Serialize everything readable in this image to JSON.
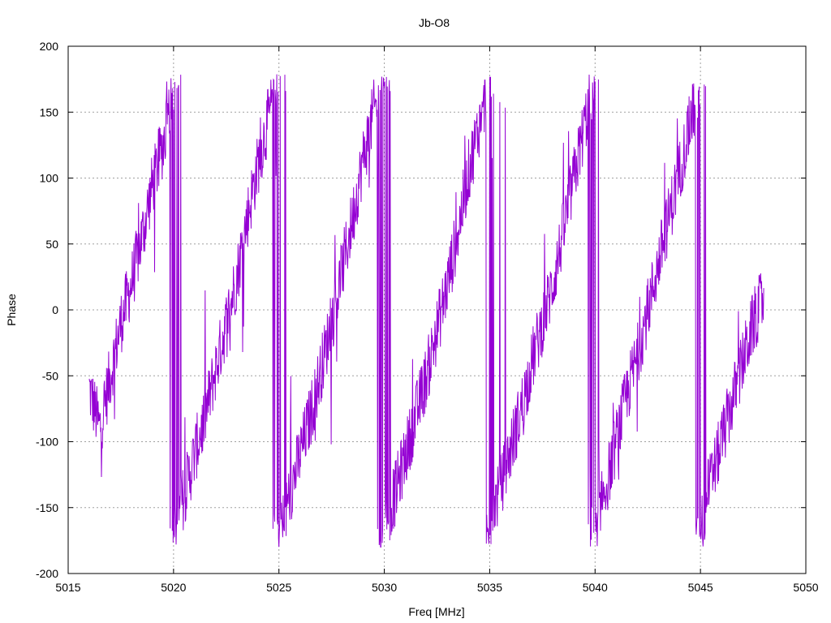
{
  "chart_data": {
    "type": "line",
    "title": "Jb-O8",
    "xlabel": "Freq [MHz]",
    "ylabel": "Phase",
    "xlim": [
      5015,
      5050
    ],
    "ylim": [
      -200,
      200
    ],
    "xticks": [
      5015,
      5020,
      5025,
      5030,
      5035,
      5040,
      5045,
      5050
    ],
    "yticks": [
      -200,
      -150,
      -100,
      -50,
      0,
      50,
      100,
      150,
      200
    ],
    "grid": true,
    "legend": "none",
    "series_color": "#9400d3",
    "series": [
      {
        "x_start": 5016.0,
        "x_end": 5048.0,
        "wrap_points_mhz": [
          5020.0,
          5025.0,
          5030.0,
          5034.9,
          5040.0,
          5044.9
        ],
        "x": [
          5016.0,
          5016.5,
          5017.0,
          5017.5,
          5018.0,
          5018.5,
          5019.0,
          5019.5,
          5019.9,
          5020.0,
          5020.5,
          5021.0,
          5021.5,
          5022.0,
          5022.5,
          5023.0,
          5023.5,
          5024.0,
          5024.5,
          5024.9,
          5025.0,
          5025.5,
          5026.0,
          5026.5,
          5027.0,
          5027.5,
          5028.0,
          5028.5,
          5029.0,
          5029.5,
          5029.9,
          5030.0,
          5030.5,
          5031.0,
          5031.5,
          5032.0,
          5032.5,
          5033.0,
          5033.5,
          5034.0,
          5034.5,
          5034.9,
          5035.0,
          5035.5,
          5036.0,
          5036.5,
          5037.0,
          5037.5,
          5038.0,
          5038.5,
          5039.0,
          5039.5,
          5039.9,
          5040.0,
          5040.5,
          5041.0,
          5041.5,
          5042.0,
          5042.5,
          5043.0,
          5043.5,
          5044.0,
          5044.5,
          5044.9,
          5045.0,
          5045.5,
          5046.0,
          5046.5,
          5047.0,
          5047.5,
          5048.0
        ],
        "y": [
          -60,
          -90,
          -50,
          -10,
          20,
          55,
          95,
          125,
          165,
          -170,
          -140,
          -110,
          -80,
          -45,
          -10,
          25,
          70,
          110,
          145,
          170,
          -165,
          -140,
          -110,
          -80,
          -45,
          -10,
          30,
          70,
          115,
          150,
          170,
          -165,
          -140,
          -110,
          -80,
          -50,
          -15,
          20,
          60,
          105,
          140,
          170,
          -160,
          -135,
          -105,
          -75,
          -40,
          -10,
          20,
          60,
          100,
          140,
          170,
          -160,
          -135,
          -100,
          -65,
          -35,
          0,
          35,
          70,
          105,
          140,
          165,
          -160,
          -130,
          -100,
          -70,
          -40,
          -10,
          10
        ]
      }
    ]
  }
}
